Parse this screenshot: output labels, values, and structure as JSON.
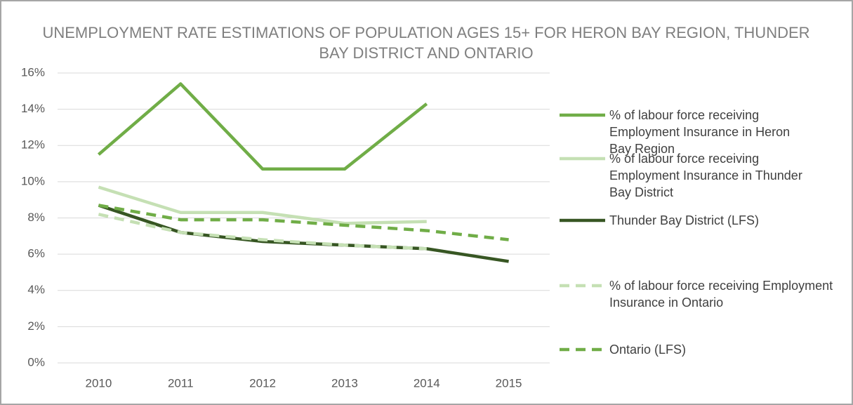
{
  "chart_data": {
    "type": "line",
    "title": "UNEMPLOYMENT RATE ESTIMATIONS OF POPULATION AGES 15+ FOR HERON BAY REGION, THUNDER BAY DISTRICT AND ONTARIO",
    "categories": [
      "2010",
      "2011",
      "2012",
      "2013",
      "2014",
      "2015"
    ],
    "series": [
      {
        "name": "% of labour force receiving Employment Insurance in Heron Bay Region",
        "color": "#70ad47",
        "dashed": false,
        "values": [
          11.5,
          15.4,
          10.7,
          10.7,
          14.3,
          null
        ]
      },
      {
        "name": "% of labour force receiving Employment Insurance in Thunder Bay District",
        "color": "#c5e0b4",
        "dashed": false,
        "values": [
          9.7,
          8.3,
          8.3,
          7.7,
          7.8,
          null
        ]
      },
      {
        "name": "Thunder Bay District (LFS)",
        "color": "#375623",
        "dashed": false,
        "values": [
          8.7,
          7.2,
          6.7,
          6.5,
          6.3,
          5.6
        ]
      },
      {
        "name": "% of labour force receiving Employment Insurance in Ontario",
        "color": "#c5e0b4",
        "dashed": true,
        "values": [
          8.2,
          7.2,
          6.8,
          6.5,
          6.3,
          null
        ]
      },
      {
        "name": "Ontario (LFS)",
        "color": "#70ad47",
        "dashed": true,
        "values": [
          8.7,
          7.9,
          7.9,
          7.6,
          7.3,
          6.8
        ]
      }
    ],
    "ylim": [
      0,
      16
    ],
    "yticks": [
      {
        "value": 0,
        "label": "0%"
      },
      {
        "value": 2,
        "label": "2%"
      },
      {
        "value": 4,
        "label": "4%"
      },
      {
        "value": 6,
        "label": "6%"
      },
      {
        "value": 8,
        "label": "8%"
      },
      {
        "value": 10,
        "label": "10%"
      },
      {
        "value": 12,
        "label": "12%"
      },
      {
        "value": 14,
        "label": "14%"
      },
      {
        "value": 16,
        "label": "16%"
      }
    ],
    "grid": true,
    "legend": "right"
  }
}
